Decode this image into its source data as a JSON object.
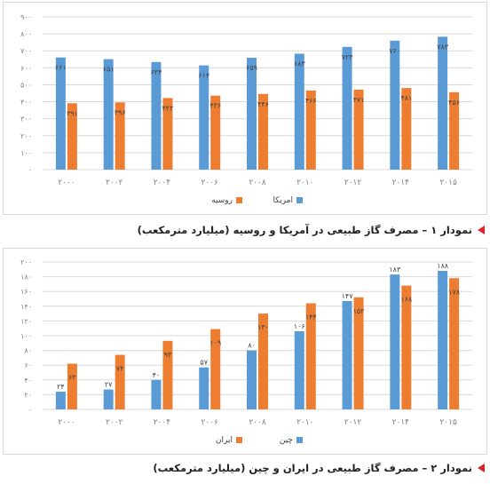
{
  "colors": {
    "blue": "#5b9bd5",
    "orange": "#ed7d31",
    "grid": "#d9d9d9",
    "tick": "#7f7f7f",
    "label": "#404040"
  },
  "chart_data": [
    {
      "type": "bar",
      "categories": [
        "۲۰۰۰",
        "۲۰۰۲",
        "۲۰۰۴",
        "۲۰۰۶",
        "۲۰۰۸",
        "۲۰۱۰",
        "۲۰۱۲",
        "۲۰۱۴",
        "۲۰۱۵"
      ],
      "series": [
        {
          "name": "امریکا",
          "color": "#5b9bd5",
          "values": [
            661,
            651,
            634,
            614,
            659,
            683,
            723,
            760,
            783
          ],
          "labels": [
            "۶۶۱",
            "۶۵۱",
            "۶۳۴",
            "۶۱۴",
            "۶۵۹",
            "۶۸۳",
            "۷۲۳",
            "۷۶۰",
            "۷۸۳"
          ]
        },
        {
          "name": "روسیه",
          "color": "#ed7d31",
          "values": [
            391,
            396,
            422,
            436,
            446,
            466,
            471,
            481,
            456
          ],
          "labels": [
            "۳۹۱",
            "۳۹۶",
            "۴۲۲",
            "۴۳۶",
            "۴۴۶",
            "۴۶۶",
            "۴۷۱",
            "۴۸۱",
            "۴۵۶"
          ]
        }
      ],
      "yticks": [
        0,
        100,
        200,
        300,
        400,
        500,
        600,
        700,
        800,
        900
      ],
      "ytick_labels": [
        "۰",
        "۱۰۰",
        "۲۰۰",
        "۳۰۰",
        "۴۰۰",
        "۵۰۰",
        "۶۰۰",
        "۷۰۰",
        "۸۰۰",
        "۹۰۰"
      ],
      "ylim": [
        0,
        900
      ],
      "grid": true,
      "legend": "bottom-center"
    },
    {
      "type": "bar",
      "categories": [
        "۲۰۰۰",
        "۲۰۰۲",
        "۲۰۰۴",
        "۲۰۰۶",
        "۲۰۰۸",
        "۲۰۱۰",
        "۲۰۱۲",
        "۲۰۱۴",
        "۲۰۱۵"
      ],
      "series": [
        {
          "name": "چین",
          "color": "#5b9bd5",
          "values": [
            24,
            27,
            40,
            57,
            80,
            106,
            147,
            183,
            188
          ],
          "labels": [
            "۲۴",
            "۲۷",
            "۴۰",
            "۵۷",
            "۸۰",
            "۱۰۶",
            "۱۴۷",
            "۱۸۳",
            "۱۸۸"
          ]
        },
        {
          "name": "ایران",
          "color": "#ed7d31",
          "values": [
            62,
            74,
            93,
            109,
            130,
            144,
            152,
            168,
            178
          ],
          "labels": [
            "۶۲",
            "۷۴",
            "۹۳",
            "۱۰۹",
            "۱۳۰",
            "۱۴۴",
            "۱۵۲",
            "۱۶۸",
            "۱۷۸"
          ]
        }
      ],
      "yticks": [
        0,
        20,
        40,
        60,
        80,
        100,
        120,
        140,
        160,
        180,
        200
      ],
      "ytick_labels": [
        "۰",
        "۲۰",
        "۴۰",
        "۶۰",
        "۸۰",
        "۱۰۰",
        "۱۲۰",
        "۱۴۰",
        "۱۶۰",
        "۱۸۰",
        "۲۰۰"
      ],
      "ylim": [
        0,
        200
      ],
      "grid": true,
      "legend": "bottom-center"
    }
  ],
  "captions": {
    "chart1": "نمودار ۱ – مصرف گاز طبیعی در آمریکا و روسیه (میلیارد مترمکعب)",
    "chart2": "نمودار ۲ – مصرف گاز طبیعی در ایران و چین (میلیارد مترمکعب)"
  }
}
